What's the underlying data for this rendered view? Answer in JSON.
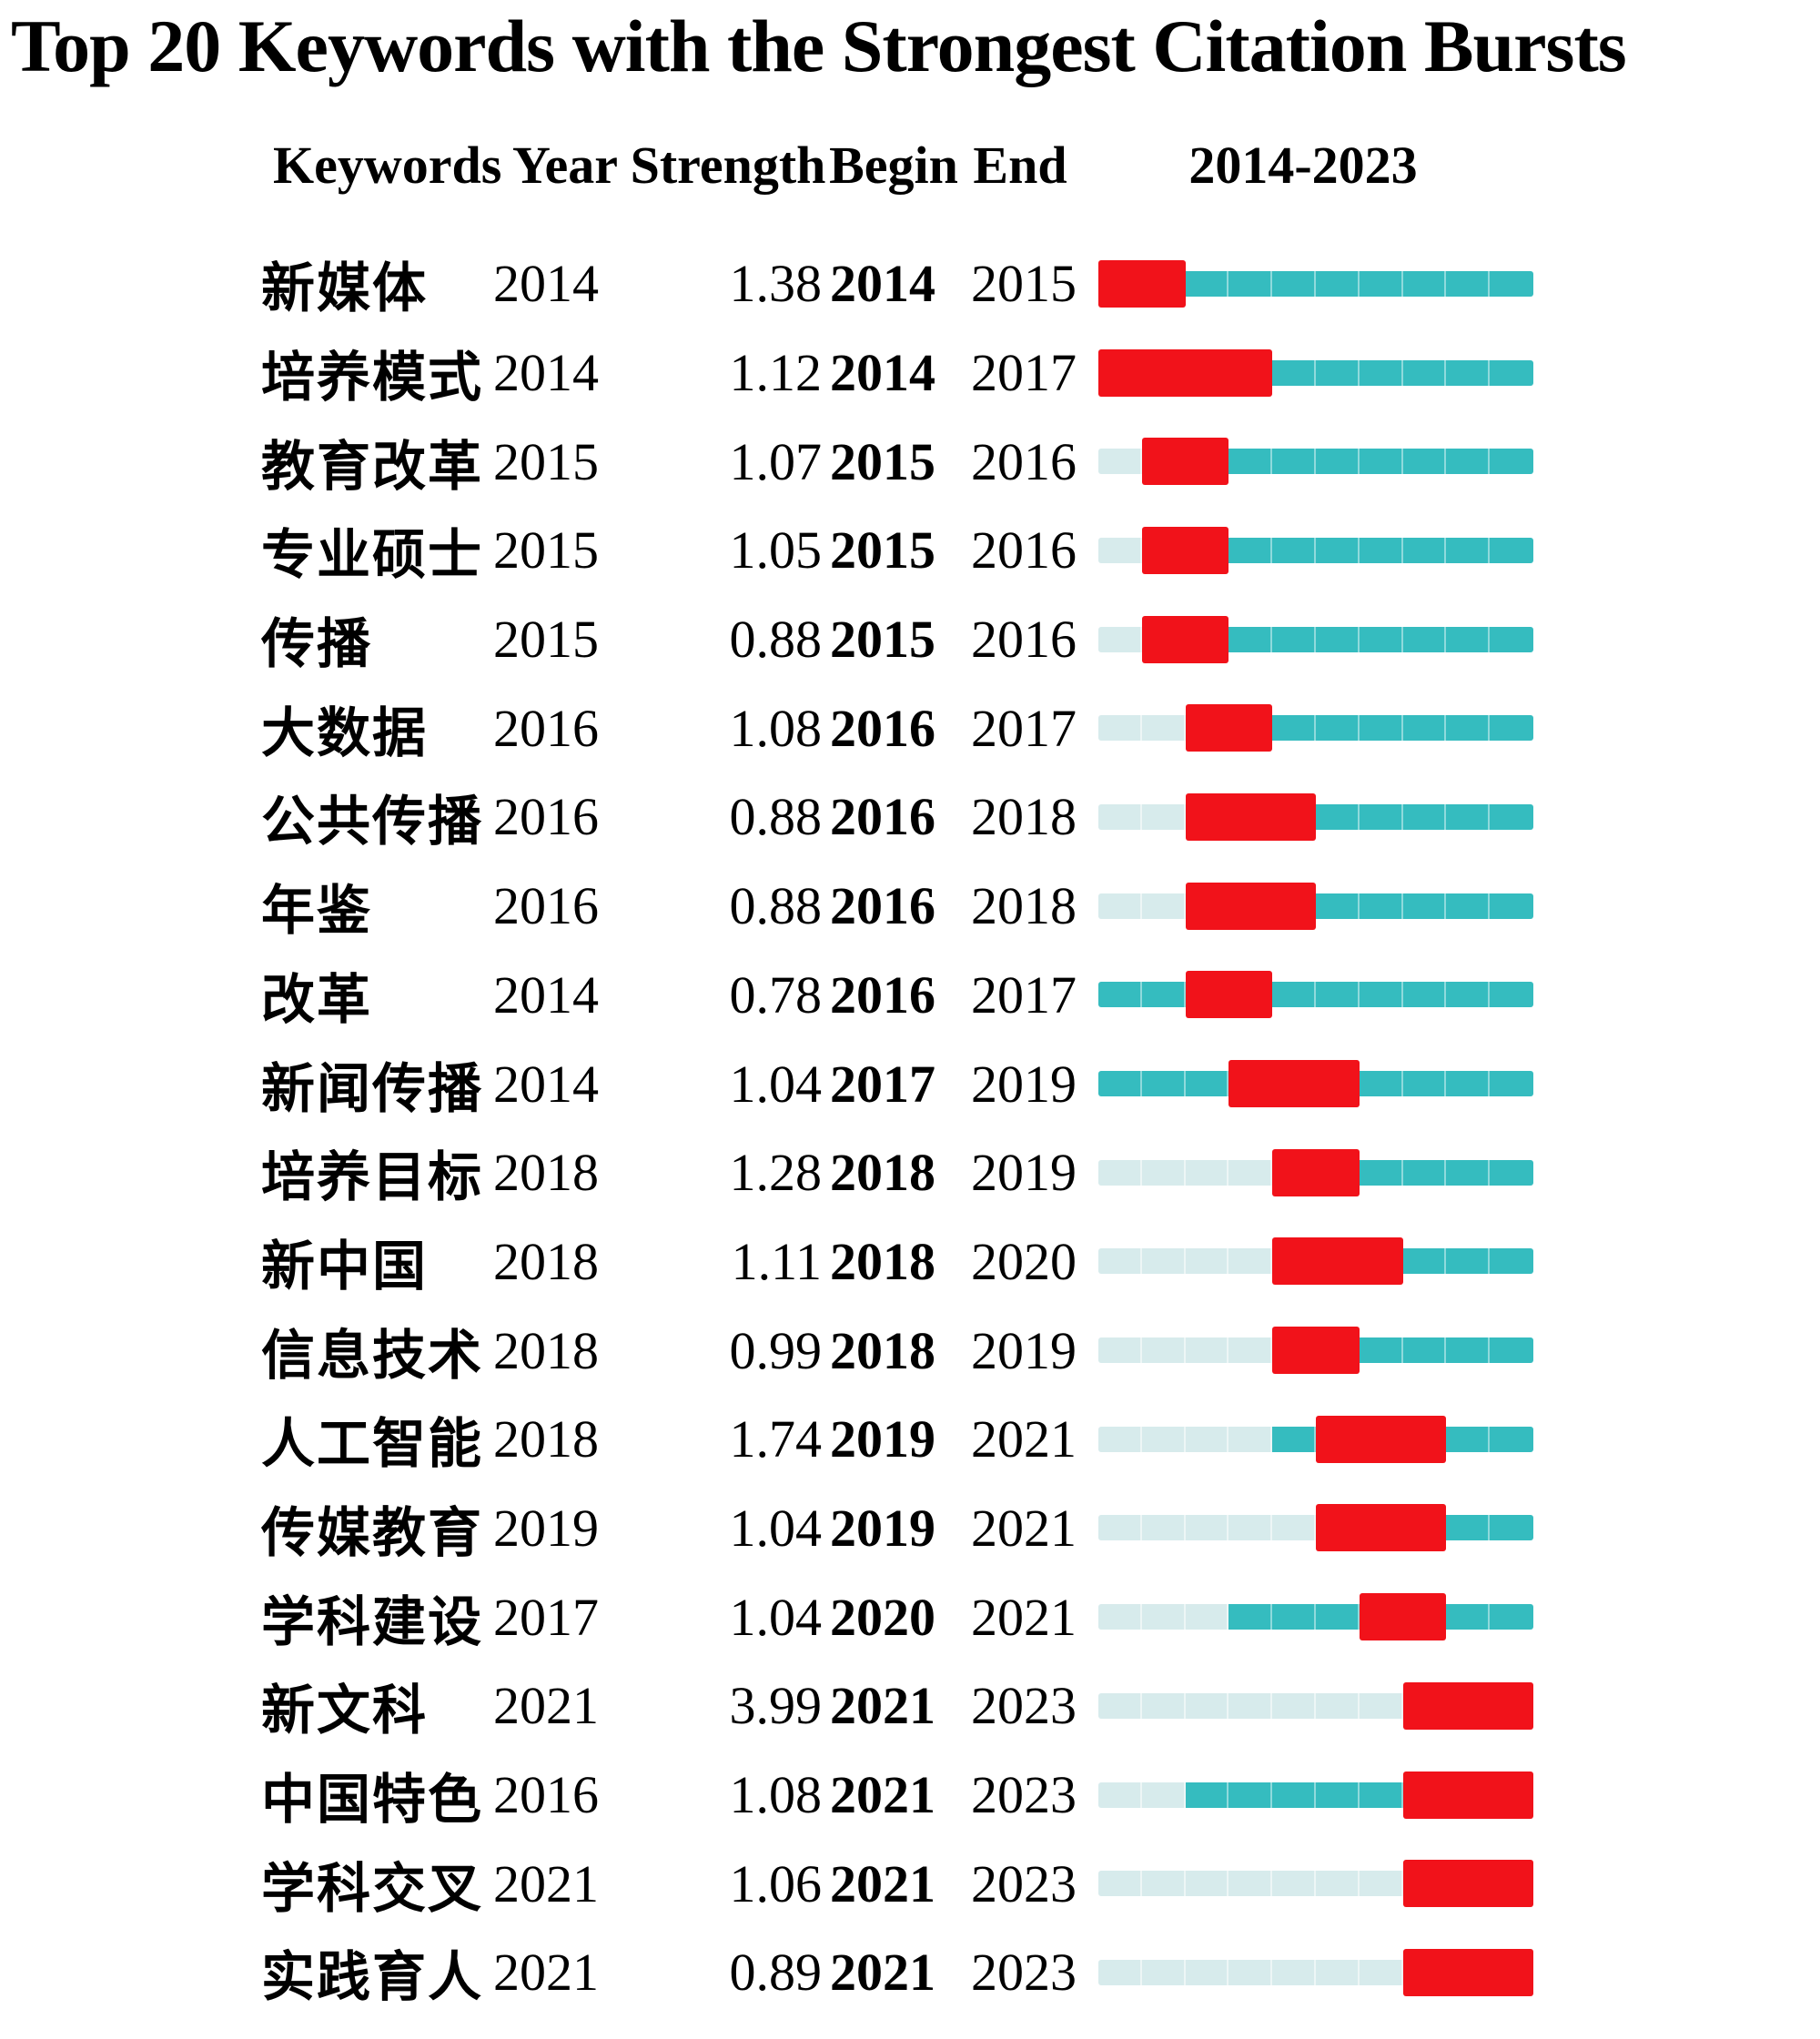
{
  "title": "Top 20 Keywords with the Strongest Citation Bursts",
  "header": {
    "keywords": "Keywords",
    "year": "Year",
    "strength": "Strength",
    "begin": "Begin",
    "end": "End",
    "range_label": "2014-2023"
  },
  "colors": {
    "burst_red": "#f1121a",
    "active_teal": "#35bcbf",
    "inactive_pale": "#d7ebec",
    "text": "#000000",
    "background": "#ffffff"
  },
  "chart_data": {
    "type": "table",
    "title": "Top 20 Keywords with the Strongest Citation Bursts",
    "columns": [
      "Keywords",
      "Year",
      "Strength",
      "Begin",
      "End",
      "2014-2023"
    ],
    "timeline_range": [
      2014,
      2023
    ],
    "rows": [
      {
        "keyword": "新媒体",
        "year": 2014,
        "strength": "1.38",
        "begin": 2014,
        "end": 2015
      },
      {
        "keyword": "培养模式",
        "year": 2014,
        "strength": "1.12",
        "begin": 2014,
        "end": 2017
      },
      {
        "keyword": "教育改革",
        "year": 2015,
        "strength": "1.07",
        "begin": 2015,
        "end": 2016
      },
      {
        "keyword": "专业硕士",
        "year": 2015,
        "strength": "1.05",
        "begin": 2015,
        "end": 2016
      },
      {
        "keyword": "传播",
        "year": 2015,
        "strength": "0.88",
        "begin": 2015,
        "end": 2016
      },
      {
        "keyword": "大数据",
        "year": 2016,
        "strength": "1.08",
        "begin": 2016,
        "end": 2017
      },
      {
        "keyword": "公共传播",
        "year": 2016,
        "strength": "0.88",
        "begin": 2016,
        "end": 2018
      },
      {
        "keyword": "年鉴",
        "year": 2016,
        "strength": "0.88",
        "begin": 2016,
        "end": 2018
      },
      {
        "keyword": "改革",
        "year": 2014,
        "strength": "0.78",
        "begin": 2016,
        "end": 2017
      },
      {
        "keyword": "新闻传播",
        "year": 2014,
        "strength": "1.04",
        "begin": 2017,
        "end": 2019
      },
      {
        "keyword": "培养目标",
        "year": 2018,
        "strength": "1.28",
        "begin": 2018,
        "end": 2019
      },
      {
        "keyword": "新中国",
        "year": 2018,
        "strength": "1.11",
        "begin": 2018,
        "end": 2020
      },
      {
        "keyword": "信息技术",
        "year": 2018,
        "strength": "0.99",
        "begin": 2018,
        "end": 2019
      },
      {
        "keyword": "人工智能",
        "year": 2018,
        "strength": "1.74",
        "begin": 2019,
        "end": 2021
      },
      {
        "keyword": "传媒教育",
        "year": 2019,
        "strength": "1.04",
        "begin": 2019,
        "end": 2021
      },
      {
        "keyword": "学科建设",
        "year": 2017,
        "strength": "1.04",
        "begin": 2020,
        "end": 2021
      },
      {
        "keyword": "新文科",
        "year": 2021,
        "strength": "3.99",
        "begin": 2021,
        "end": 2023
      },
      {
        "keyword": "中国特色",
        "year": 2016,
        "strength": "1.08",
        "begin": 2021,
        "end": 2023
      },
      {
        "keyword": "学科交叉",
        "year": 2021,
        "strength": "1.06",
        "begin": 2021,
        "end": 2023
      },
      {
        "keyword": "实践育人",
        "year": 2021,
        "strength": "0.89",
        "begin": 2021,
        "end": 2023
      }
    ]
  }
}
